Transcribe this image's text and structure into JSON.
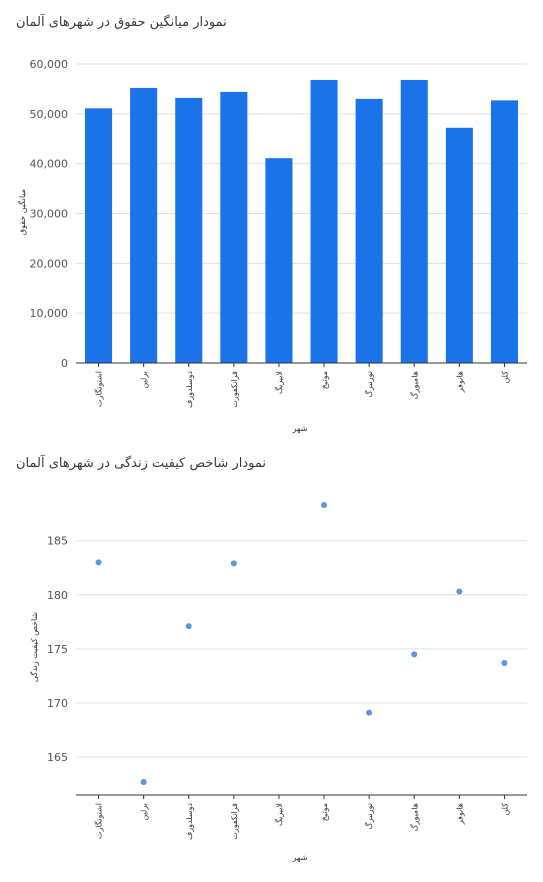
{
  "chart_data": [
    {
      "type": "bar",
      "title": "نمودار میانگین حقوق در شهرهای آلمان",
      "xlabel": "شهر",
      "ylabel": "میانگین حقوق",
      "categories": [
        "اشتوتگارت",
        "برلین",
        "دوسلدورف",
        "فرانکفورت",
        "لایپزیگ",
        "مونیخ",
        "نورنبرگ",
        "هامبورگ",
        "هانوفر",
        "کلن"
      ],
      "values": [
        51100,
        55200,
        53200,
        54400,
        41100,
        56800,
        53000,
        56800,
        47200,
        52700
      ],
      "ylim": [
        0,
        60000
      ],
      "yticks": [
        0,
        10000,
        20000,
        30000,
        40000,
        50000,
        60000
      ],
      "ytick_labels": [
        "0",
        "10,000",
        "20,000",
        "30,000",
        "40,000",
        "50,000",
        "60,000"
      ],
      "grid": true,
      "color": "#1a73e8"
    },
    {
      "type": "scatter",
      "title": "نمودار شاخص کیفیت زندگی در شهرهای آلمان",
      "xlabel": "شهر",
      "ylabel": "شاخص کیفیت زندگی",
      "categories": [
        "اشتوتگارت",
        "برلین",
        "دوسلدورف",
        "فرانکفورت",
        "لایپزیگ",
        "مونیخ",
        "نورنبرگ",
        "هامبورگ",
        "هانوفر",
        "کلن"
      ],
      "values": [
        183.0,
        162.7,
        177.1,
        182.9,
        null,
        188.3,
        169.1,
        174.5,
        180.3,
        173.7
      ],
      "ylim": [
        161.5,
        189.5
      ],
      "yticks": [
        165,
        170,
        175,
        180,
        185
      ],
      "ytick_labels": [
        "165",
        "170",
        "175",
        "180",
        "185"
      ],
      "grid": true,
      "color": "#5b95e4"
    }
  ]
}
